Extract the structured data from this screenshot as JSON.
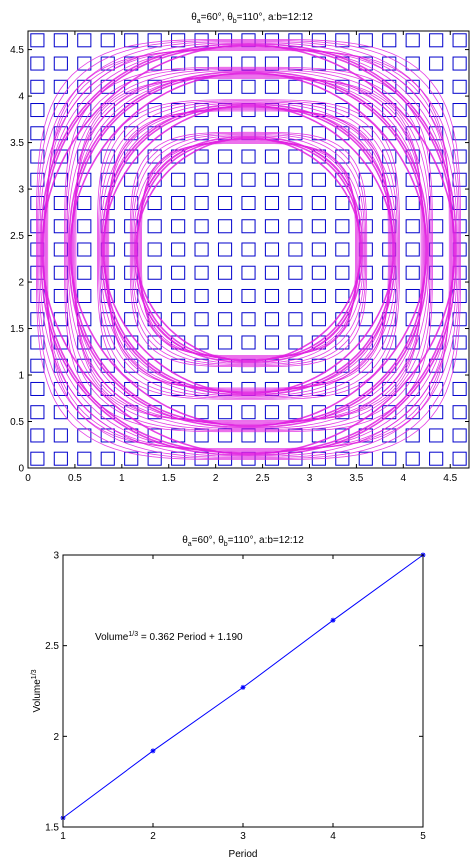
{
  "chart_data": [
    {
      "type": "scatter",
      "title": "θa=60°, θb=110°, a:b=12:12",
      "title_parts": {
        "theta": "θ",
        "sub_a": "a",
        "sub_b": "b",
        "a_val": "=60°, ",
        "b_val": "=110°, a:b=12:12"
      },
      "xlim": [
        0,
        4.7
      ],
      "ylim": [
        0,
        4.7
      ],
      "xticks": [
        "0",
        "0.5",
        "1",
        "1.5",
        "2",
        "2.5",
        "3",
        "3.5",
        "4",
        "4.5"
      ],
      "yticks": [
        "0",
        "0.5",
        "1",
        "1.5",
        "2",
        "2.5",
        "3",
        "3.5",
        "4",
        "4.5"
      ],
      "lattice": {
        "start": 0.1,
        "spacing": 0.25,
        "count": 19,
        "square_size": 0.14,
        "color": "#0000cc"
      },
      "rings": {
        "center": [
          2.35,
          2.35
        ],
        "radii": [
          1.2,
          1.55,
          1.9,
          2.2
        ],
        "color": "#e020e0"
      }
    },
    {
      "type": "line",
      "title": "θa=60°, θb=110°, a:b=12:12",
      "xlabel": "Period",
      "ylabel": "Volume1/3",
      "ylabel_parts": {
        "base": "Volume",
        "sup": "1/3"
      },
      "annotation": "Volume1/3 = 0.362 Period + 1.190",
      "annotation_parts": {
        "lhs": "Volume",
        "sup": "1/3",
        "rhs": " = 0.362 Period + 1.190"
      },
      "xlim": [
        1,
        5
      ],
      "ylim": [
        1.5,
        3
      ],
      "xticks": [
        "1",
        "2",
        "3",
        "4",
        "5"
      ],
      "yticks": [
        "1.5",
        "2",
        "2.5",
        "3"
      ],
      "x": [
        1,
        2,
        3,
        4,
        5
      ],
      "y": [
        1.55,
        1.92,
        2.27,
        2.64,
        3.0
      ],
      "fit": {
        "slope": 0.362,
        "intercept": 1.19
      },
      "color": "#0000ff"
    }
  ]
}
